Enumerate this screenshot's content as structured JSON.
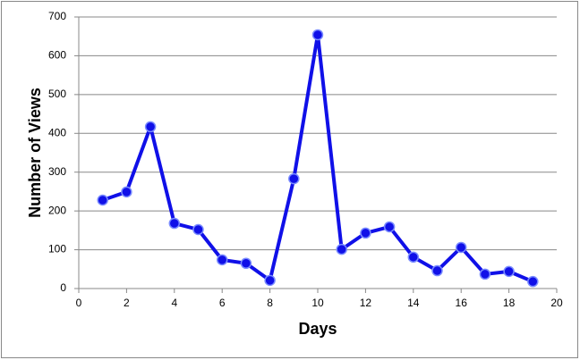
{
  "chart_data": {
    "type": "line",
    "xlabel": "Days",
    "ylabel": "Number of Views",
    "x": [
      1,
      2,
      3,
      4,
      5,
      6,
      7,
      8,
      9,
      10,
      11,
      12,
      13,
      14,
      15,
      16,
      17,
      18,
      19
    ],
    "series": [
      {
        "color": "#1010e8",
        "values": [
          228,
          249,
          417,
          168,
          152,
          74,
          65,
          21,
          283,
          654,
          101,
          143,
          159,
          81,
          46,
          106,
          37,
          44,
          18
        ]
      }
    ],
    "xlim": [
      0,
      20
    ],
    "xticks": [
      0,
      2,
      4,
      6,
      8,
      10,
      12,
      14,
      16,
      18,
      20
    ],
    "ylim": [
      0,
      700
    ],
    "yticks": [
      0,
      100,
      200,
      300,
      400,
      500,
      600,
      700
    ],
    "grid": true
  }
}
